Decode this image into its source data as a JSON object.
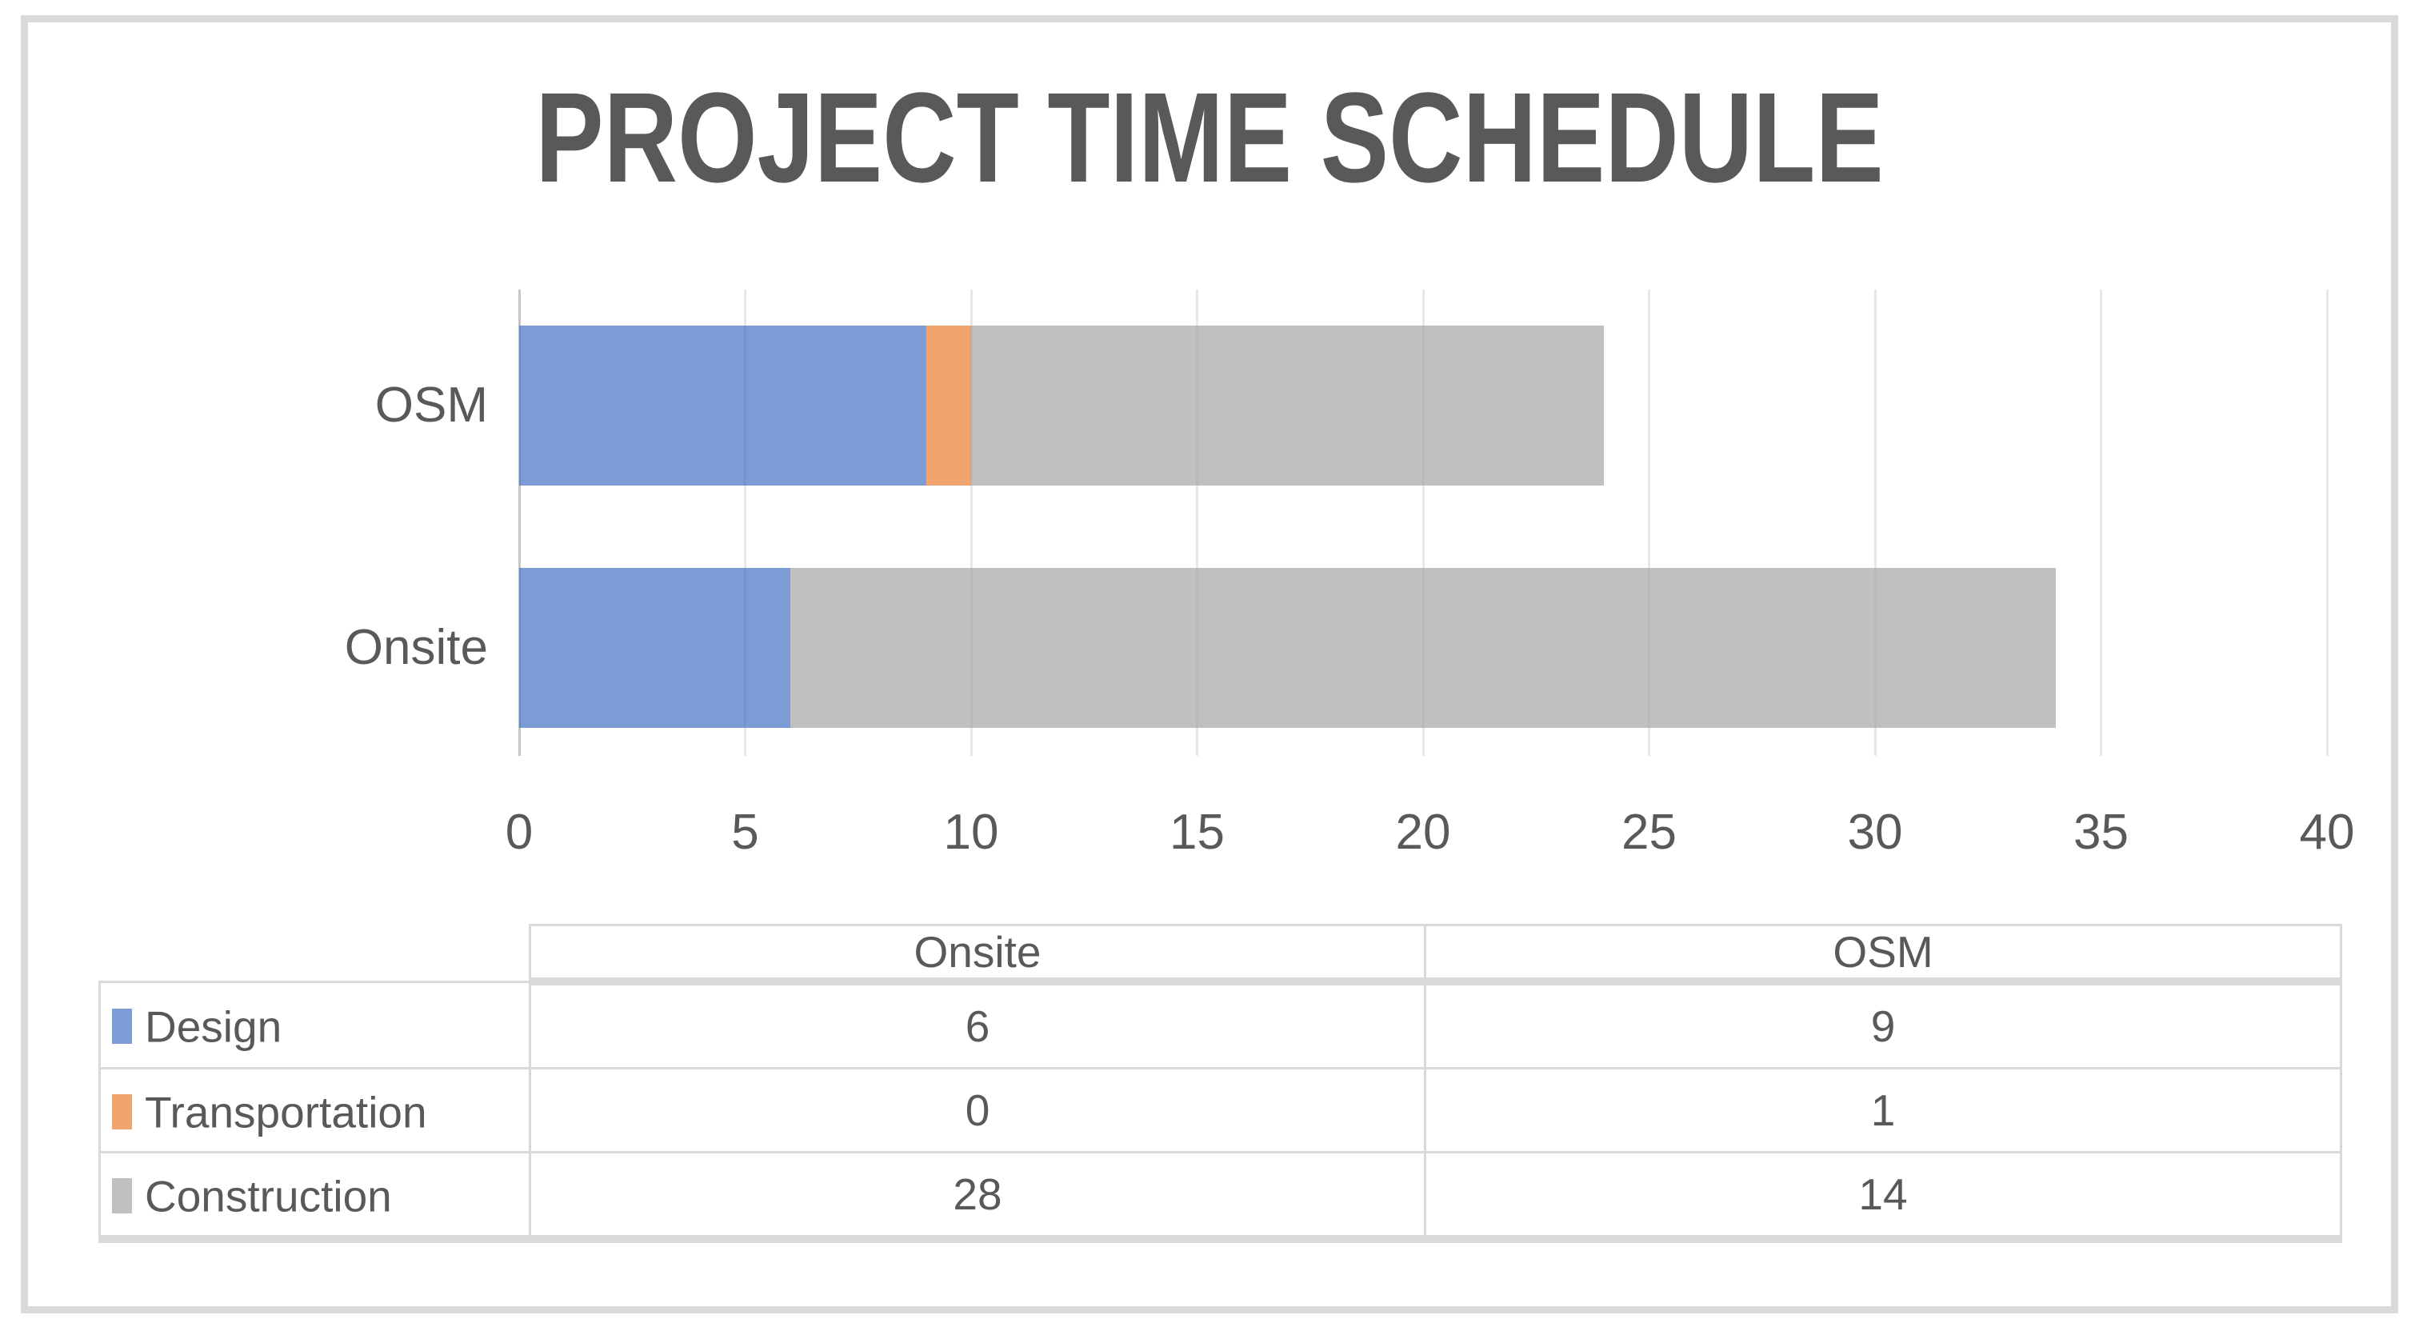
{
  "title": "PROJECT TIME SCHEDULE",
  "colors": {
    "design_fill": "rgba(68,114,196,0.7)",
    "transportation_fill": "rgba(237,125,49,0.7)",
    "construction_fill": "rgba(165,165,165,0.7)",
    "design_hex": "#7C9CD6",
    "transportation_hex": "#F2A46F",
    "construction_hex": "#C0C0C0",
    "text": "#595959",
    "gridline": "#E7E7E7",
    "axis_line": "#C6C6C6",
    "frame_border": "#D9D9D9",
    "table_border": "#D9D9D9"
  },
  "chart_data": {
    "type": "bar",
    "orientation": "horizontal",
    "stacked": true,
    "title": "PROJECT TIME SCHEDULE",
    "categories": [
      "Onsite",
      "OSM"
    ],
    "display_order_top_to_bottom": [
      "OSM",
      "Onsite"
    ],
    "series": [
      {
        "name": "Design",
        "values": [
          6,
          9
        ],
        "fill": "rgba(68,114,196,0.7)"
      },
      {
        "name": "Transportation",
        "values": [
          0,
          1
        ],
        "fill": "rgba(237,125,49,0.7)"
      },
      {
        "name": "Construction",
        "values": [
          28,
          14
        ],
        "fill": "rgba(165,165,165,0.7)"
      }
    ],
    "totals": {
      "Onsite": 34,
      "OSM": 24
    },
    "xlim": [
      0,
      40
    ],
    "xticks": [
      0,
      5,
      10,
      15,
      20,
      25,
      30,
      35,
      40
    ],
    "xlabel": "",
    "ylabel": "",
    "grid": true,
    "legend_position": "data-table-below"
  },
  "table": {
    "corner_label": "",
    "columns": [
      "Onsite",
      "OSM"
    ],
    "rows": [
      {
        "label": "Design",
        "swatch_color": "rgba(68,114,196,0.7)",
        "values": [
          "6",
          "9"
        ]
      },
      {
        "label": "Transportation",
        "swatch_color": "rgba(237,125,49,0.7)",
        "values": [
          "0",
          "1"
        ]
      },
      {
        "label": "Construction",
        "swatch_color": "rgba(165,165,165,0.7)",
        "values": [
          "28",
          "14"
        ]
      }
    ]
  }
}
